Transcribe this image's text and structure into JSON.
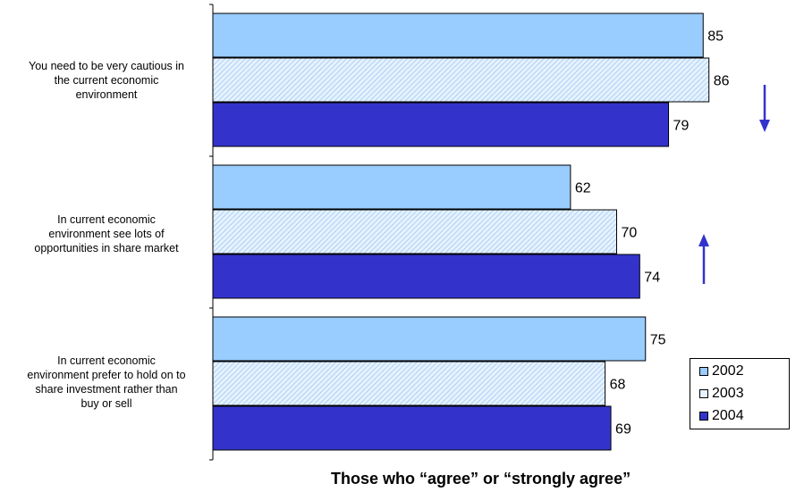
{
  "chart_data": {
    "type": "bar",
    "orientation": "horizontal",
    "categories": [
      "You need to be very cautious in the current economic environment",
      "In current economic environment see lots of opportunities in share market",
      "In current economic environment prefer to hold on to share investment rather than buy or sell"
    ],
    "category_lines": [
      [
        "You need to be very cautious in",
        "the current economic",
        "environment"
      ],
      [
        "In current economic",
        "environment see lots of",
        "opportunities in share market"
      ],
      [
        "In current economic",
        "environment prefer to hold on to",
        "share investment rather than",
        "buy or sell"
      ]
    ],
    "series": [
      {
        "name": "2002",
        "values": [
          85,
          62,
          75
        ],
        "color": "#99ccff",
        "pattern": "solid"
      },
      {
        "name": "2003",
        "values": [
          86,
          70,
          68
        ],
        "color": "#cce6ff",
        "pattern": "diagonal-hatch"
      },
      {
        "name": "2004",
        "values": [
          79,
          74,
          69
        ],
        "color": "#3333cc",
        "pattern": "solid"
      }
    ],
    "xlim": [
      0,
      100
    ],
    "grid": false,
    "legend_position": "bottom-right",
    "annotations": [
      {
        "category_index": 0,
        "arrow": "down",
        "color": "#3333cc"
      },
      {
        "category_index": 1,
        "arrow": "up",
        "color": "#3333cc"
      }
    ],
    "xlabel": "Those who “agree” or “strongly agree”"
  }
}
